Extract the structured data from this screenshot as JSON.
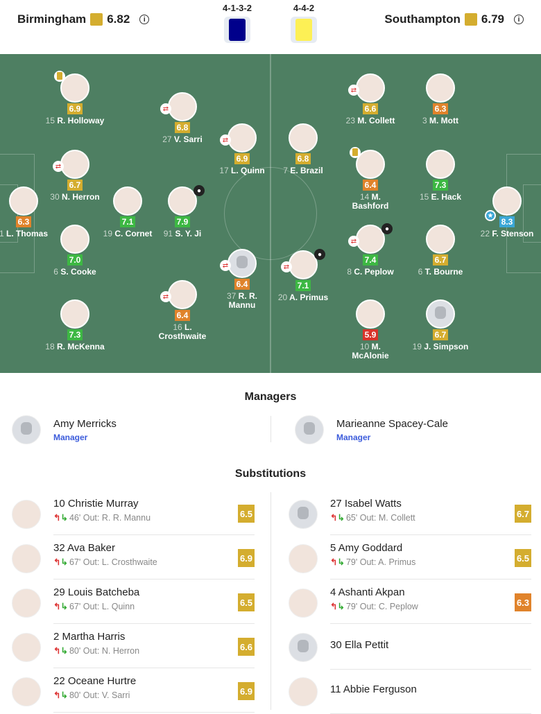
{
  "header": {
    "home": {
      "name": "Birmingham",
      "rating": "6.82",
      "formation": "4-1-3-2",
      "kit_color": "#00008b"
    },
    "away": {
      "name": "Southampton",
      "rating": "6.79",
      "formation": "4-4-2",
      "kit_color": "#fdf055"
    }
  },
  "colors": {
    "yellow": "#d4ad2f",
    "orange": "#e0832b",
    "green": "#3db843",
    "red": "#d8342a",
    "blue": "#3ba7d6",
    "pitch": "#4e7f62"
  },
  "home_players": [
    {
      "num": "15",
      "name": "R. Holloway",
      "rating": "6.9",
      "color": "yellow",
      "card": true
    },
    {
      "num": "27",
      "name": "V. Sarri",
      "rating": "6.8",
      "color": "yellow",
      "sub": true
    },
    {
      "num": "17",
      "name": "L. Quinn",
      "rating": "6.9",
      "color": "yellow",
      "sub": true
    },
    {
      "num": "30",
      "name": "N. Herron",
      "rating": "6.7",
      "color": "yellow",
      "sub": true
    },
    {
      "num": "1",
      "name": "L. Thomas",
      "rating": "6.3",
      "color": "orange"
    },
    {
      "num": "19",
      "name": "C. Cornet",
      "rating": "7.1",
      "color": "green"
    },
    {
      "num": "91",
      "name": "S. Y. Ji",
      "rating": "7.9",
      "color": "green",
      "goal": true
    },
    {
      "num": "6",
      "name": "S. Cooke",
      "rating": "7.0",
      "color": "green"
    },
    {
      "num": "37",
      "name": "R. R. Mannu",
      "rating": "6.4",
      "color": "orange",
      "sub": true,
      "placeholder": true
    },
    {
      "num": "16",
      "name": "L. Crosthwaite",
      "rating": "6.4",
      "color": "orange",
      "sub": true
    },
    {
      "num": "18",
      "name": "R. McKenna",
      "rating": "7.3",
      "color": "green"
    }
  ],
  "away_players": [
    {
      "num": "23",
      "name": "M. Collett",
      "rating": "6.6",
      "color": "yellow",
      "sub": true
    },
    {
      "num": "3",
      "name": "M. Mott",
      "rating": "6.3",
      "color": "orange"
    },
    {
      "num": "7",
      "name": "E. Brazil",
      "rating": "6.8",
      "color": "yellow"
    },
    {
      "num": "14",
      "name": "M. Bashford",
      "rating": "6.4",
      "color": "orange",
      "card": true
    },
    {
      "num": "15",
      "name": "E. Hack",
      "rating": "7.3",
      "color": "green"
    },
    {
      "num": "22",
      "name": "F. Stenson",
      "rating": "8.3",
      "color": "blue",
      "star": true
    },
    {
      "num": "8",
      "name": "C. Peplow",
      "rating": "7.4",
      "color": "green",
      "sub": true,
      "goal": true
    },
    {
      "num": "6",
      "name": "T. Bourne",
      "rating": "6.7",
      "color": "yellow"
    },
    {
      "num": "20",
      "name": "A. Primus",
      "rating": "7.1",
      "color": "green",
      "sub": true,
      "goal": true
    },
    {
      "num": "10",
      "name": "M. McAlonie",
      "rating": "5.9",
      "color": "red"
    },
    {
      "num": "19",
      "name": "J. Simpson",
      "rating": "6.7",
      "color": "yellow",
      "placeholder": true
    }
  ],
  "managers": {
    "title": "Managers",
    "home": {
      "name": "Amy Merricks",
      "role": "Manager"
    },
    "away": {
      "name": "Marieanne Spacey-Cale",
      "role": "Manager"
    }
  },
  "substitutions": {
    "title": "Substitutions",
    "out_label": "Out:",
    "home": [
      {
        "name": "10 Christie Murray",
        "minute": "46'",
        "out": "R. R. Mannu",
        "rating": "6.5",
        "color": "yellow"
      },
      {
        "name": "32 Ava Baker",
        "minute": "67'",
        "out": "L. Crosthwaite",
        "rating": "6.9",
        "color": "yellow"
      },
      {
        "name": "29 Louis Batcheba",
        "minute": "67'",
        "out": "L. Quinn",
        "rating": "6.5",
        "color": "yellow"
      },
      {
        "name": "2 Martha Harris",
        "minute": "80'",
        "out": "N. Herron",
        "rating": "6.6",
        "color": "yellow"
      },
      {
        "name": "22 Oceane Hurtre",
        "minute": "80'",
        "out": "V. Sarri",
        "rating": "6.9",
        "color": "yellow"
      }
    ],
    "away": [
      {
        "name": "27 Isabel Watts",
        "minute": "65'",
        "out": "M. Collett",
        "rating": "6.7",
        "color": "yellow",
        "placeholder": true
      },
      {
        "name": "5 Amy Goddard",
        "minute": "79'",
        "out": "A. Primus",
        "rating": "6.5",
        "color": "yellow"
      },
      {
        "name": "4 Ashanti Akpan",
        "minute": "79'",
        "out": "C. Peplow",
        "rating": "6.3",
        "color": "orange"
      },
      {
        "name": "30 Ella Pettit",
        "placeholder": true
      },
      {
        "name": "11 Abbie Ferguson"
      }
    ]
  }
}
